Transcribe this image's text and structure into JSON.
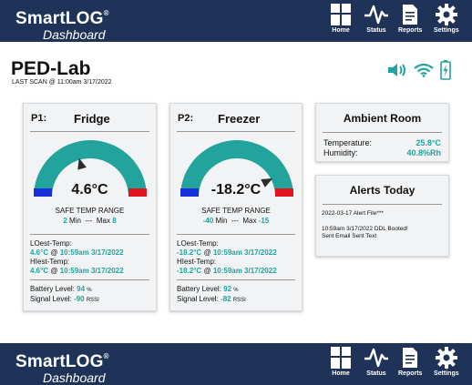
{
  "brand": {
    "name": "SmartLOG",
    "reg": "®",
    "sub": "Dashboard"
  },
  "nav": [
    {
      "label": "Home",
      "icon": "home-grid-icon"
    },
    {
      "label": "Status",
      "icon": "pulse-icon"
    },
    {
      "label": "Reports",
      "icon": "report-document-icon"
    },
    {
      "label": "Settings",
      "icon": "gear-icon"
    }
  ],
  "page": {
    "title": "PED-Lab",
    "last_scan": "LAST SCAN @ 11:00am 3/17/2022"
  },
  "status_icons": [
    "speaker-icon",
    "wifi-icon",
    "battery-charging-icon"
  ],
  "colors": {
    "navy": "#1e3357",
    "teal": "#22a39b",
    "blue": "#1830d8",
    "red": "#e0151f"
  },
  "probes": [
    {
      "id": "P1:",
      "name": "Fridge",
      "reading": "4.6°C",
      "range_title": "SAFE TEMP RANGE",
      "min_val": "2",
      "min_label": "Min",
      "sep": "---",
      "max_label": "Max",
      "max_val": "8",
      "lowest_label": "LOest-Temp:",
      "lowest_temp": "4.6°C",
      "lowest_at": "@",
      "lowest_time": "10:59am 3/17/2022",
      "highest_label": "HIest-Temp:",
      "highest_temp": "4.6°C",
      "highest_at": "@",
      "highest_time": "10:59am 3/17/2022",
      "battery_label": "Battery Level:",
      "battery_val": "94",
      "battery_unit": "%",
      "signal_label": "Signal Level:",
      "signal_val": "-90",
      "signal_unit": "RSSI",
      "needle_fraction": 0.41
    },
    {
      "id": "P2:",
      "name": "Freezer",
      "reading": "-18.2°C",
      "range_title": "SAFE TEMP RANGE",
      "min_val": "-40",
      "min_label": "Min",
      "sep": "---",
      "max_label": "Max",
      "max_val": "-15",
      "lowest_label": "LOest-Temp:",
      "lowest_temp": "-18.2°C",
      "lowest_at": "@",
      "lowest_time": "10:59am 3/17/2022",
      "highest_label": "HIest-Temp:",
      "highest_temp": "-18.2°C",
      "highest_at": "@",
      "highest_time": "10:59am 3/17/2022",
      "battery_label": "Battery Level:",
      "battery_val": "92",
      "battery_unit": "%",
      "signal_label": "Signal Level:",
      "signal_val": "-82",
      "signal_unit": "RSSI",
      "needle_fraction": 0.85
    }
  ],
  "ambient": {
    "title": "Ambient Room",
    "temp_label": "Temperature:",
    "temp_val": "25.8°C",
    "hum_label": "Humidity:",
    "hum_val": "40.8%Rh"
  },
  "alerts": {
    "title": "Alerts Today",
    "line1": "2022-03-17 Alert File***",
    "line2": "10:59am 3/17/2022 DDL Booted!",
    "line3": "Sent Email Sent Text"
  }
}
